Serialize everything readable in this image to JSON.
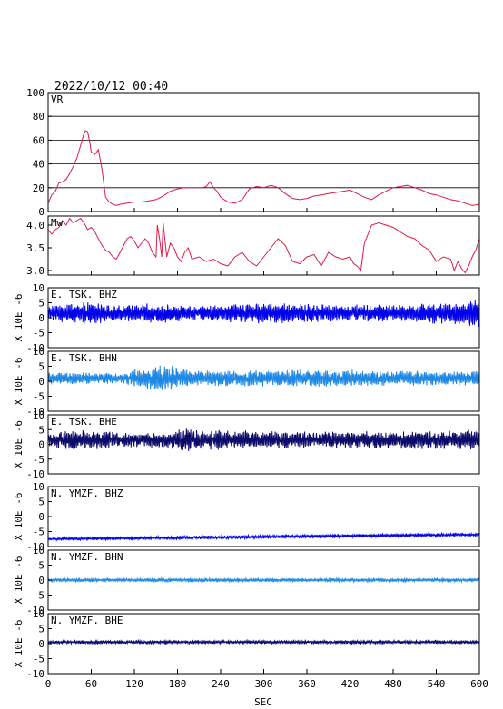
{
  "datetime": "2022/10/12 00:40",
  "x_axis": {
    "label": "SEC",
    "ticks": [
      0,
      60,
      120,
      180,
      240,
      300,
      360,
      420,
      480,
      540,
      600
    ],
    "range": [
      0,
      600
    ]
  },
  "y_unit_label": "X 10E -6",
  "colors": {
    "vr": "#dd1a44",
    "mw": "#dd1a44",
    "bhz": "#0000ee",
    "bhn": "#1e88e5",
    "bhe": "#0a0a6a",
    "grid": "#000000"
  },
  "chart_data": [
    {
      "type": "line",
      "id": "vr",
      "label": "VR",
      "ylim": [
        0,
        100
      ],
      "yticks": [
        0,
        20,
        40,
        60,
        80,
        100
      ],
      "ytick_labels": [
        "0",
        "20",
        "40",
        "60",
        "80",
        "100"
      ],
      "grid": "horizontal",
      "x": [
        0,
        5,
        10,
        15,
        20,
        25,
        30,
        35,
        40,
        45,
        50,
        52,
        55,
        58,
        60,
        65,
        70,
        75,
        80,
        85,
        90,
        95,
        100,
        110,
        120,
        130,
        140,
        150,
        160,
        170,
        180,
        190,
        200,
        210,
        215,
        220,
        225,
        230,
        235,
        240,
        250,
        260,
        270,
        280,
        290,
        300,
        310,
        320,
        330,
        340,
        350,
        360,
        370,
        380,
        390,
        400,
        410,
        420,
        430,
        440,
        450,
        460,
        470,
        480,
        490,
        500,
        510,
        520,
        530,
        540,
        550,
        560,
        570,
        580,
        590,
        600
      ],
      "y": [
        7,
        14,
        17,
        24,
        25,
        27,
        32,
        38,
        45,
        55,
        66,
        68,
        67,
        58,
        50,
        48,
        52,
        35,
        12,
        8,
        6,
        5,
        6,
        7,
        8,
        8,
        9,
        10,
        13,
        17,
        19,
        20,
        20,
        20,
        20,
        21,
        25,
        20,
        17,
        12,
        8,
        7,
        10,
        19,
        21,
        20,
        22,
        20,
        15,
        11,
        10,
        11,
        13,
        14,
        15,
        16,
        17,
        18,
        15,
        12,
        10,
        14,
        17,
        20,
        21,
        22,
        20,
        18,
        15,
        14,
        12,
        10,
        9,
        7,
        5,
        6
      ]
    },
    {
      "type": "line",
      "id": "mw",
      "label": "Mw",
      "ylim": [
        2.9,
        4.2
      ],
      "yticks": [
        3.0,
        3.5,
        4.0
      ],
      "ytick_labels": [
        "3.0",
        "3.5",
        "4.0"
      ],
      "x": [
        0,
        5,
        10,
        15,
        20,
        25,
        30,
        35,
        40,
        45,
        50,
        55,
        60,
        65,
        70,
        75,
        80,
        85,
        90,
        95,
        100,
        105,
        110,
        115,
        120,
        125,
        130,
        135,
        140,
        145,
        150,
        152,
        155,
        158,
        160,
        165,
        170,
        175,
        180,
        185,
        190,
        195,
        200,
        210,
        220,
        230,
        240,
        250,
        260,
        270,
        280,
        290,
        300,
        310,
        320,
        330,
        340,
        350,
        360,
        370,
        380,
        390,
        400,
        410,
        420,
        425,
        430,
        435,
        440,
        445,
        450,
        460,
        470,
        480,
        490,
        500,
        510,
        520,
        530,
        540,
        550,
        560,
        565,
        570,
        575,
        580,
        585,
        590,
        595,
        600
      ],
      "y": [
        3.9,
        3.8,
        3.9,
        3.95,
        4.1,
        4.0,
        4.15,
        4.05,
        4.1,
        4.15,
        4.05,
        3.9,
        3.95,
        3.85,
        3.7,
        3.55,
        3.45,
        3.4,
        3.3,
        3.25,
        3.4,
        3.55,
        3.7,
        3.75,
        3.65,
        3.5,
        3.6,
        3.7,
        3.6,
        3.4,
        3.3,
        4.0,
        3.7,
        3.3,
        4.05,
        3.3,
        3.6,
        3.5,
        3.3,
        3.2,
        3.4,
        3.5,
        3.25,
        3.3,
        3.2,
        3.25,
        3.15,
        3.1,
        3.3,
        3.4,
        3.2,
        3.1,
        3.3,
        3.5,
        3.7,
        3.55,
        3.2,
        3.15,
        3.3,
        3.35,
        3.1,
        3.4,
        3.3,
        3.25,
        3.3,
        3.15,
        3.1,
        3.0,
        3.6,
        3.8,
        4.0,
        4.05,
        4.0,
        3.95,
        3.85,
        3.75,
        3.7,
        3.55,
        3.45,
        3.2,
        3.3,
        3.25,
        3.0,
        3.2,
        3.05,
        2.95,
        3.1,
        3.3,
        3.45,
        3.7
      ]
    },
    {
      "type": "line",
      "id": "etsk_bhz",
      "label": "E. TSK. BHZ",
      "color_key": "bhz",
      "ylim": [
        -10,
        10
      ],
      "yticks": [
        10,
        5,
        0,
        -5,
        -10
      ],
      "ytick_labels": [
        "10",
        "5",
        "0",
        "-5",
        "-10"
      ],
      "baseline": 1.5,
      "amplitude_envelope": [
        [
          0,
          2.5
        ],
        [
          30,
          3.5
        ],
        [
          60,
          4
        ],
        [
          90,
          2.5
        ],
        [
          150,
          3.5
        ],
        [
          200,
          2.5
        ],
        [
          300,
          3.5
        ],
        [
          400,
          3
        ],
        [
          500,
          3
        ],
        [
          580,
          4
        ],
        [
          600,
          6
        ]
      ]
    },
    {
      "type": "line",
      "id": "etsk_bhn",
      "label": "E. TSK. BHN",
      "color_key": "bhn",
      "ylim": [
        -10,
        10
      ],
      "yticks": [
        10,
        5,
        0,
        -5,
        -10
      ],
      "ytick_labels": [
        "10",
        "5",
        "0",
        "-5",
        "-10"
      ],
      "baseline": 1.0,
      "amplitude_envelope": [
        [
          0,
          2
        ],
        [
          100,
          2
        ],
        [
          140,
          4
        ],
        [
          160,
          5
        ],
        [
          200,
          2.5
        ],
        [
          300,
          3
        ],
        [
          400,
          3
        ],
        [
          500,
          2.5
        ],
        [
          600,
          2.5
        ]
      ]
    },
    {
      "type": "line",
      "id": "etsk_bhe",
      "label": "E. TSK. BHE",
      "color_key": "bhe",
      "ylim": [
        -10,
        10
      ],
      "yticks": [
        10,
        5,
        0,
        -5,
        -10
      ],
      "ytick_labels": [
        "10",
        "5",
        "0",
        "-5",
        "-10"
      ],
      "baseline": 1.5,
      "amplitude_envelope": [
        [
          0,
          3
        ],
        [
          60,
          3.5
        ],
        [
          120,
          2.5
        ],
        [
          200,
          4
        ],
        [
          300,
          3
        ],
        [
          400,
          3
        ],
        [
          500,
          3
        ],
        [
          600,
          3.5
        ]
      ]
    },
    {
      "type": "line",
      "id": "nymzf_bhz",
      "label": "N. YMZF. BHZ",
      "color_key": "bhz",
      "ylim": [
        -10,
        10
      ],
      "yticks": [
        10,
        5,
        0,
        -5,
        -10
      ],
      "ytick_labels": [
        "10",
        "5",
        "0",
        "-5",
        "-10"
      ],
      "baseline_ramp": [
        -7.5,
        -6
      ],
      "amplitude_envelope": [
        [
          0,
          0.5
        ],
        [
          300,
          0.6
        ],
        [
          600,
          0.6
        ]
      ]
    },
    {
      "type": "line",
      "id": "nymzf_bhn",
      "label": "N. YMZF. BHN",
      "color_key": "bhn",
      "ylim": [
        -10,
        10
      ],
      "yticks": [
        10,
        5,
        0,
        -5,
        -10
      ],
      "ytick_labels": [
        "10",
        "5",
        "0",
        "-5",
        "-10"
      ],
      "baseline": 0.0,
      "amplitude_envelope": [
        [
          0,
          0.6
        ],
        [
          300,
          0.6
        ],
        [
          600,
          0.6
        ]
      ]
    },
    {
      "type": "line",
      "id": "nymzf_bhe",
      "label": "N. YMZF. BHE",
      "color_key": "bhe",
      "ylim": [
        -10,
        10
      ],
      "yticks": [
        10,
        5,
        0,
        -5,
        -10
      ],
      "ytick_labels": [
        "10",
        "5",
        "0",
        "-5",
        "-10"
      ],
      "baseline": 0.5,
      "amplitude_envelope": [
        [
          0,
          0.6
        ],
        [
          300,
          0.6
        ],
        [
          600,
          0.6
        ]
      ]
    }
  ]
}
